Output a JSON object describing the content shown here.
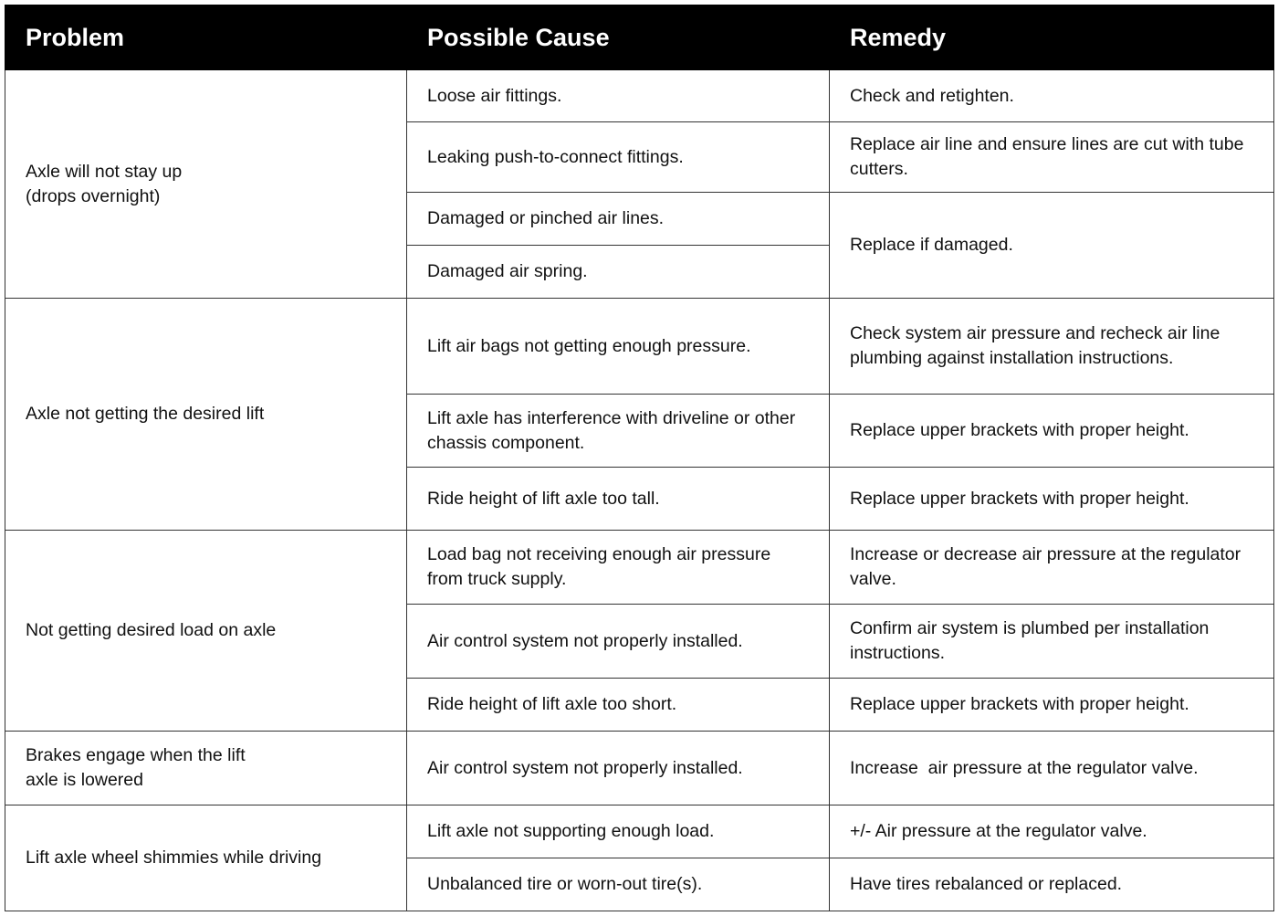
{
  "headers": {
    "problem": "Problem",
    "cause": "Possible Cause",
    "remedy": "Remedy"
  },
  "rows": [
    {
      "problem": "Axle will not stay up (drops overnight)",
      "causes": [
        {
          "cause": "Loose air fittings.",
          "remedy": "Check and retighten."
        },
        {
          "cause": "Leaking push-to-connect fittings.",
          "remedy": "Replace air line and ensure lines are cut with tube cutters."
        },
        {
          "cause": "Damaged or pinched air lines.",
          "remedy": "Replace if damaged."
        },
        {
          "cause": "Damaged air spring."
        }
      ]
    },
    {
      "problem": "Axle not getting the desired lift",
      "causes": [
        {
          "cause": "Lift air bags not getting enough pressure.",
          "remedy": "Check system air pressure and recheck air line plumbing against installation instructions."
        },
        {
          "cause": "Lift axle has interference with driveline or other chassis component.",
          "remedy": "Replace upper brackets with proper height."
        },
        {
          "cause": "Ride height of lift axle too tall.",
          "remedy": "Replace upper brackets with proper height."
        }
      ]
    },
    {
      "problem": "Not getting desired load on axle",
      "causes": [
        {
          "cause": "Load bag not receiving enough air pressure from truck supply.",
          "remedy": "Increase or decrease air pressure at the regulator valve."
        },
        {
          "cause": "Air control system not properly installed.",
          "remedy": "Confirm air system is plumbed per installation instructions."
        },
        {
          "cause": "Ride height of lift axle too short.",
          "remedy": "Replace upper brackets with proper height."
        }
      ]
    },
    {
      "problem": "Brakes engage when the lift axle is lowered",
      "causes": [
        {
          "cause": "Air control system not properly installed.",
          "remedy": "Increase  air pressure at the regulator valve."
        }
      ]
    },
    {
      "problem": "Lift axle wheel shimmies while driving",
      "causes": [
        {
          "cause": "Lift axle not supporting enough load.",
          "remedy": "+/- Air pressure at the regulator valve."
        },
        {
          "cause": "Unbalanced tire or worn-out tire(s).",
          "remedy": "Have tires rebalanced or replaced."
        }
      ]
    }
  ]
}
